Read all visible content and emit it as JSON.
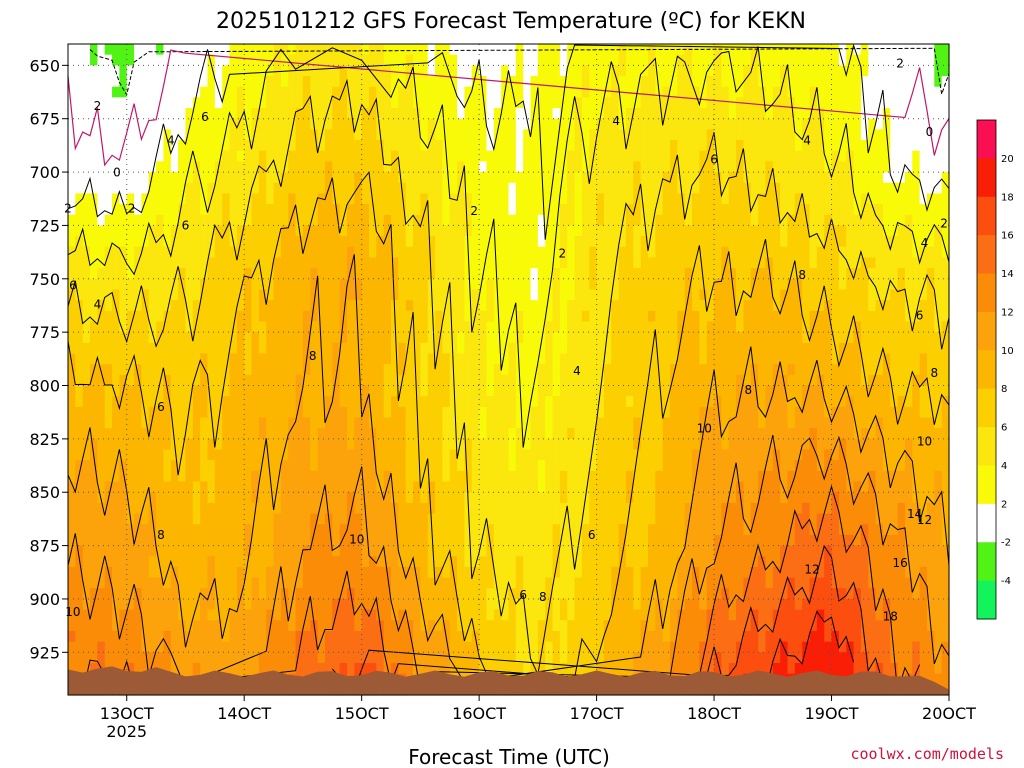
{
  "chart_data": {
    "type": "heatmap",
    "title": "2025101212 GFS Forecast Temperature (ºC) for KEKN",
    "xlabel": "Forecast Time (UTC)",
    "credit": "coolwx.com/models",
    "x_ticks": [
      {
        "label": "13OCT",
        "year": "2025",
        "hour": 12
      },
      {
        "label": "14OCT",
        "hour": 36
      },
      {
        "label": "15OCT",
        "hour": 60
      },
      {
        "label": "16OCT",
        "hour": 84
      },
      {
        "label": "17OCT",
        "hour": 108
      },
      {
        "label": "18OCT",
        "hour": 132
      },
      {
        "label": "19OCT",
        "hour": 156
      },
      {
        "label": "20OCT",
        "hour": 180
      }
    ],
    "x_range_hours": [
      0,
      180
    ],
    "y_axis": {
      "scale": "pressure (hPa)",
      "range": [
        945,
        640
      ],
      "ticks": [
        650,
        675,
        700,
        725,
        750,
        775,
        800,
        825,
        850,
        875,
        900,
        925
      ]
    },
    "grid": true,
    "terrain_color": "#9c5a36",
    "colorbar": {
      "ticks": [
        20,
        18,
        16,
        14,
        12,
        10,
        8,
        6,
        4,
        2,
        -2,
        -4
      ],
      "bands": [
        {
          "from": -6,
          "to": -4,
          "color": "#13f45c"
        },
        {
          "from": -4,
          "to": -2,
          "color": "#51f314"
        },
        {
          "from": -2,
          "to": 2,
          "color": "#ffffff"
        },
        {
          "from": 2,
          "to": 4,
          "color": "#f9fa07"
        },
        {
          "from": 4,
          "to": 6,
          "color": "#fbe60d"
        },
        {
          "from": 6,
          "to": 8,
          "color": "#fcd000"
        },
        {
          "from": 8,
          "to": 10,
          "color": "#fcb600"
        },
        {
          "from": 10,
          "to": 12,
          "color": "#fca20b"
        },
        {
          "from": 12,
          "to": 14,
          "color": "#fa8c07"
        },
        {
          "from": 14,
          "to": 16,
          "color": "#fb6e14"
        },
        {
          "from": 16,
          "to": 18,
          "color": "#fb4e0f"
        },
        {
          "from": 18,
          "to": 20,
          "color": "#fb1e06"
        },
        {
          "from": 20,
          "to": 22,
          "color": "#fc0e52"
        }
      ]
    },
    "temperature_profiles": [
      {
        "hour": 0,
        "t": [
          [
            640,
            -1
          ],
          [
            700,
            1.0
          ],
          [
            750,
            5.2
          ],
          [
            800,
            8.5
          ],
          [
            875,
            11.5
          ],
          [
            945,
            14.5
          ]
        ]
      },
      {
        "hour": 12,
        "t": [
          [
            640,
            -3
          ],
          [
            700,
            0.5
          ],
          [
            750,
            4.8
          ],
          [
            800,
            8.0
          ],
          [
            875,
            11.0
          ],
          [
            945,
            14.0
          ]
        ]
      },
      {
        "hour": 24,
        "t": [
          [
            640,
            0
          ],
          [
            700,
            3.5
          ],
          [
            750,
            5.5
          ],
          [
            800,
            7.5
          ],
          [
            875,
            8.5
          ],
          [
            945,
            12.0
          ]
        ]
      },
      {
        "hour": 36,
        "t": [
          [
            640,
            2.5
          ],
          [
            700,
            5.0
          ],
          [
            750,
            7.5
          ],
          [
            800,
            8.5
          ],
          [
            875,
            9.0
          ],
          [
            945,
            11.0
          ]
        ]
      },
      {
        "hour": 48,
        "t": [
          [
            640,
            4.5
          ],
          [
            700,
            7.0
          ],
          [
            750,
            9.5
          ],
          [
            800,
            9.5
          ],
          [
            875,
            12.0
          ],
          [
            945,
            15.0
          ]
        ]
      },
      {
        "hour": 60,
        "t": [
          [
            640,
            4.5
          ],
          [
            700,
            7.5
          ],
          [
            750,
            10.0
          ],
          [
            800,
            9.5
          ],
          [
            875,
            12.5
          ],
          [
            945,
            17.0
          ]
        ]
      },
      {
        "hour": 72,
        "t": [
          [
            640,
            2.5
          ],
          [
            700,
            5.0
          ],
          [
            750,
            7.0
          ],
          [
            800,
            6.5
          ],
          [
            875,
            8.5
          ],
          [
            945,
            13.0
          ]
        ]
      },
      {
        "hour": 84,
        "t": [
          [
            640,
            1.0
          ],
          [
            700,
            3.0
          ],
          [
            750,
            3.5
          ],
          [
            800,
            4.5
          ],
          [
            875,
            5.5
          ],
          [
            945,
            8.5
          ]
        ]
      },
      {
        "hour": 96,
        "t": [
          [
            640,
            2.0
          ],
          [
            700,
            2.5
          ],
          [
            750,
            2.5
          ],
          [
            800,
            3.8
          ],
          [
            875,
            4.8
          ],
          [
            945,
            6.0
          ]
        ]
      },
      {
        "hour": 108,
        "t": [
          [
            640,
            3.0
          ],
          [
            700,
            5.0
          ],
          [
            750,
            5.5
          ],
          [
            800,
            5.5
          ],
          [
            875,
            6.5
          ],
          [
            945,
            8.5
          ]
        ]
      },
      {
        "hour": 120,
        "t": [
          [
            640,
            3.5
          ],
          [
            700,
            5.5
          ],
          [
            750,
            7.0
          ],
          [
            800,
            7.5
          ],
          [
            875,
            8.5
          ],
          [
            945,
            11.0
          ]
        ]
      },
      {
        "hour": 132,
        "t": [
          [
            640,
            3.5
          ],
          [
            700,
            6.0
          ],
          [
            750,
            8.0
          ],
          [
            800,
            9.5
          ],
          [
            875,
            12.0
          ],
          [
            945,
            16.5
          ]
        ]
      },
      {
        "hour": 144,
        "t": [
          [
            640,
            3.0
          ],
          [
            700,
            5.5
          ],
          [
            750,
            8.0
          ],
          [
            800,
            10.0
          ],
          [
            875,
            13.5
          ],
          [
            945,
            19.0
          ]
        ]
      },
      {
        "hour": 156,
        "t": [
          [
            640,
            2.5
          ],
          [
            700,
            4.5
          ],
          [
            750,
            7.0
          ],
          [
            800,
            9.5
          ],
          [
            875,
            15.5
          ],
          [
            945,
            20.5
          ]
        ]
      },
      {
        "hour": 168,
        "t": [
          [
            640,
            0.5
          ],
          [
            700,
            2.0
          ],
          [
            750,
            5.5
          ],
          [
            800,
            8.0
          ],
          [
            875,
            12.5
          ],
          [
            945,
            15.0
          ]
        ]
      },
      {
        "hour": 180,
        "t": [
          [
            640,
            -3.0
          ],
          [
            700,
            1.0
          ],
          [
            750,
            5.5
          ],
          [
            800,
            7.5
          ],
          [
            875,
            10.0
          ],
          [
            945,
            12.5
          ]
        ]
      }
    ],
    "contour_labels": [
      {
        "hour": 6,
        "p": 671,
        "text": "2"
      },
      {
        "hour": 10,
        "p": 702,
        "text": "0"
      },
      {
        "hour": 0,
        "p": 719,
        "text": "2"
      },
      {
        "hour": 13,
        "p": 719,
        "text": "2"
      },
      {
        "hour": 1,
        "p": 755,
        "text": "6"
      },
      {
        "hour": 6,
        "p": 764,
        "text": "4"
      },
      {
        "hour": 19,
        "p": 812,
        "text": "6"
      },
      {
        "hour": 19,
        "p": 872,
        "text": "8"
      },
      {
        "hour": 1,
        "p": 908,
        "text": "10"
      },
      {
        "hour": 21,
        "p": 687,
        "text": "4"
      },
      {
        "hour": 28,
        "p": 676,
        "text": "6"
      },
      {
        "hour": 24,
        "p": 727,
        "text": "6"
      },
      {
        "hour": 50,
        "p": 788,
        "text": "8"
      },
      {
        "hour": 59,
        "p": 874,
        "text": "10"
      },
      {
        "hour": 83,
        "p": 720,
        "text": "2"
      },
      {
        "hour": 101,
        "p": 740,
        "text": "2"
      },
      {
        "hour": 104,
        "p": 795,
        "text": "4"
      },
      {
        "hour": 112,
        "p": 678,
        "text": "4"
      },
      {
        "hour": 97,
        "p": 901,
        "text": "8"
      },
      {
        "hour": 93,
        "p": 900,
        "text": "6"
      },
      {
        "hour": 107,
        "p": 872,
        "text": "6"
      },
      {
        "hour": 132,
        "p": 696,
        "text": "6"
      },
      {
        "hour": 150,
        "p": 750,
        "text": "8"
      },
      {
        "hour": 139,
        "p": 804,
        "text": "8"
      },
      {
        "hour": 151,
        "p": 687,
        "text": "4"
      },
      {
        "hour": 130,
        "p": 822,
        "text": "10"
      },
      {
        "hour": 152,
        "p": 888,
        "text": "12"
      },
      {
        "hour": 170,
        "p": 651,
        "text": "2"
      },
      {
        "hour": 176,
        "p": 683,
        "text": "0"
      },
      {
        "hour": 179,
        "p": 726,
        "text": "2"
      },
      {
        "hour": 175,
        "p": 735,
        "text": "4"
      },
      {
        "hour": 174,
        "p": 769,
        "text": "6"
      },
      {
        "hour": 177,
        "p": 796,
        "text": "8"
      },
      {
        "hour": 175,
        "p": 828,
        "text": "10"
      },
      {
        "hour": 168,
        "p": 910,
        "text": "18"
      },
      {
        "hour": 170,
        "p": 885,
        "text": "16"
      },
      {
        "hour": 173,
        "p": 862,
        "text": "14"
      },
      {
        "hour": 175,
        "p": 865,
        "text": "12"
      }
    ]
  }
}
